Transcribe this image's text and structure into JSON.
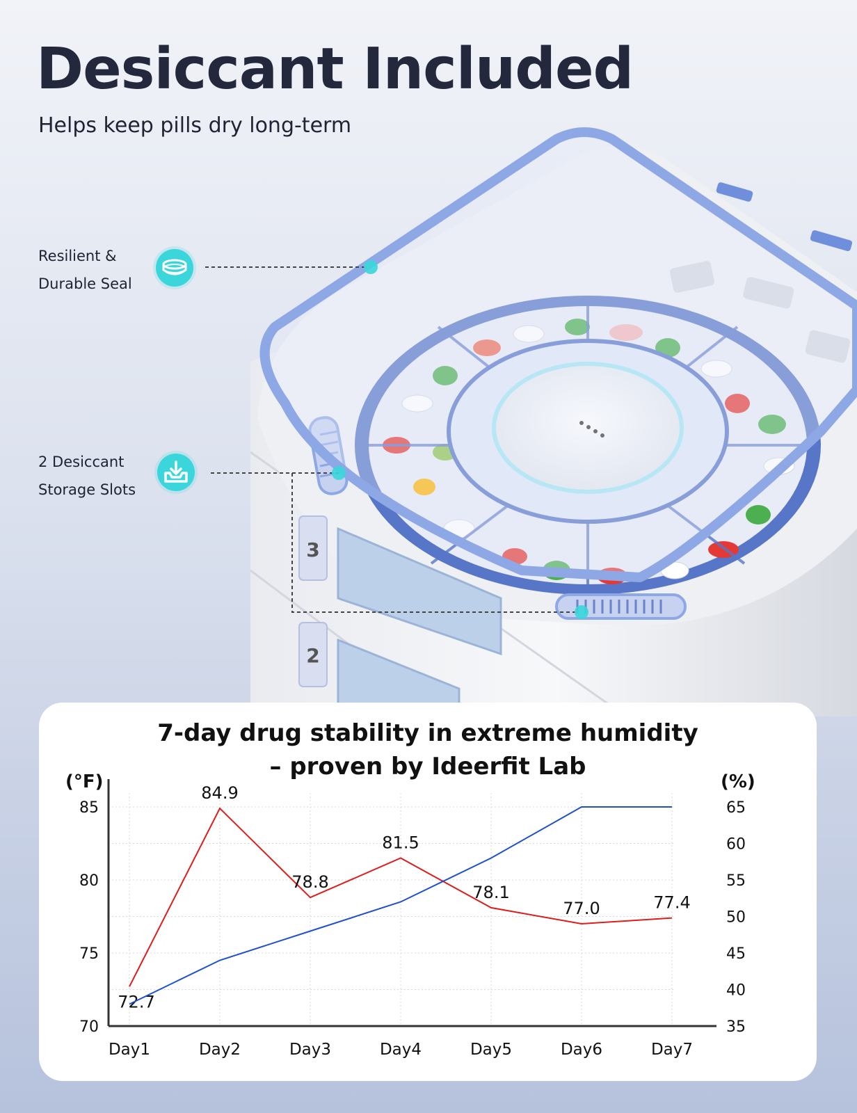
{
  "header": {
    "title": "Desiccant Included",
    "subtitle": "Helps keep pills dry long-term"
  },
  "product": {
    "drawer_numbers": [
      "3",
      "2"
    ]
  },
  "callouts": [
    {
      "line1": "Resilient &",
      "line2": "Durable Seal",
      "icon": "seal-ring-icon"
    },
    {
      "line1": "2 Desiccant",
      "line2": "Storage Slots",
      "icon": "tray-download-icon"
    }
  ],
  "colors": {
    "accent_cyan": "#3ad6dc",
    "lid_blue": "#8ea8e6",
    "temperature_line": "#e01b1b",
    "humidity_line": "#1d4fcf"
  },
  "chart_data": {
    "type": "line",
    "title_line1": "7-day drug stability in extreme humidity",
    "title_line2": "– proven by Ideerfit Lab",
    "categories": [
      "Day1",
      "Day2",
      "Day3",
      "Day4",
      "Day5",
      "Day6",
      "Day7"
    ],
    "y_left": {
      "label": "(°F)",
      "range": [
        70,
        85
      ],
      "ticks": [
        "70",
        "75",
        "80",
        "85"
      ]
    },
    "y_right": {
      "label": "(%)",
      "range": [
        35,
        65
      ],
      "ticks": [
        "35",
        "40",
        "45",
        "50",
        "55",
        "60",
        "65"
      ]
    },
    "grid": true,
    "series": [
      {
        "axis": "left",
        "color": "#e01b1b",
        "values": [
          72.7,
          84.9,
          78.8,
          81.5,
          78.1,
          77.0,
          77.4
        ],
        "labels": [
          "72.7",
          "84.9",
          "78.8",
          "81.5",
          "78.1",
          "77.0",
          "77.4"
        ]
      },
      {
        "axis": "right",
        "color": "#1d4fcf",
        "values": [
          38,
          44,
          48,
          52,
          58,
          65,
          65
        ]
      }
    ]
  }
}
